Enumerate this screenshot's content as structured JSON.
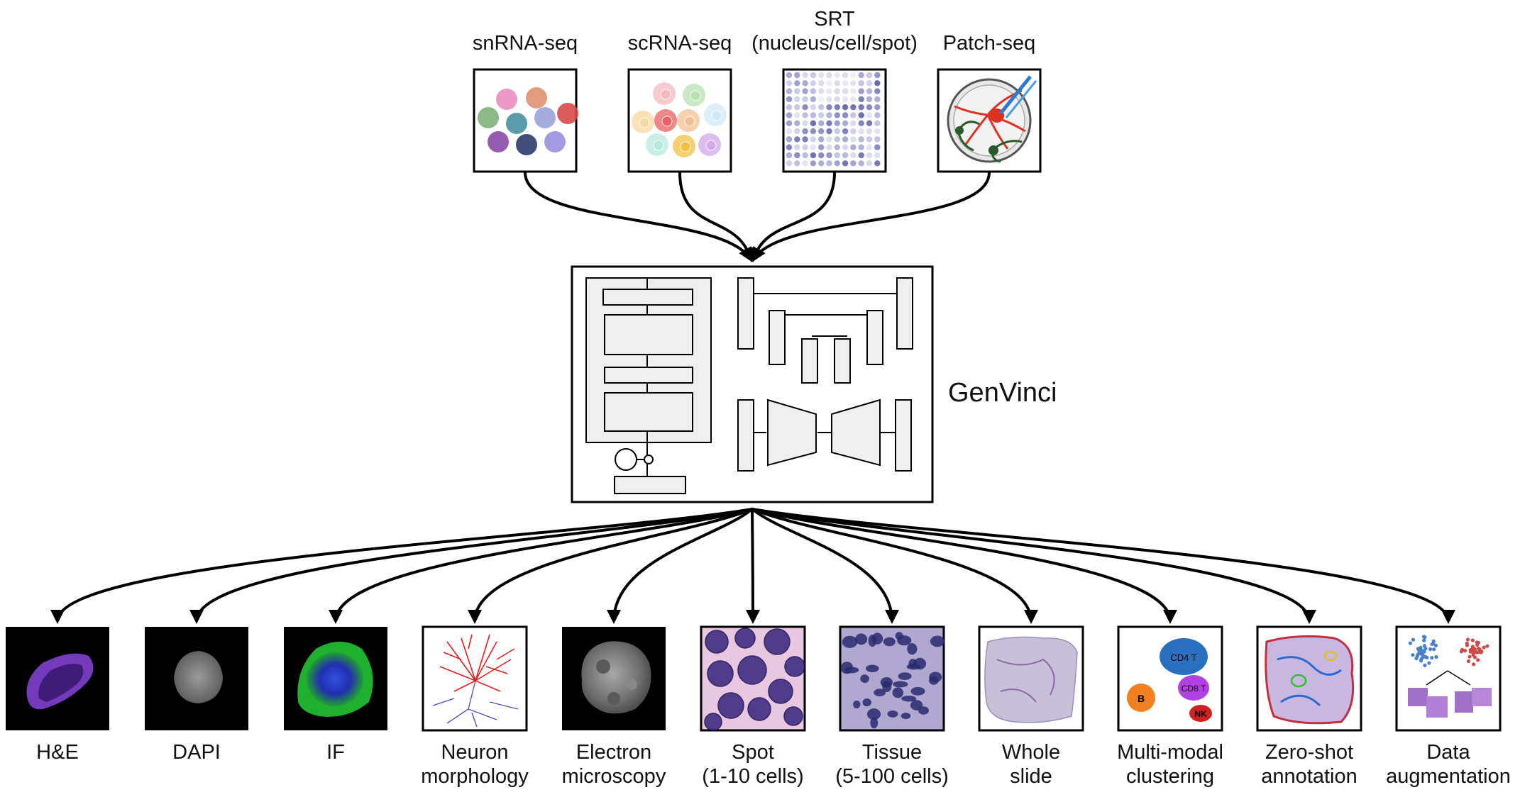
{
  "inputs": [
    {
      "id": "snrna",
      "title": [
        "snRNA-seq"
      ]
    },
    {
      "id": "scrna",
      "title": [
        "scRNA-seq"
      ]
    },
    {
      "id": "srt",
      "title": [
        "SRT",
        "(nucleus/cell/spot)"
      ]
    },
    {
      "id": "patch",
      "title": [
        "Patch-seq"
      ]
    }
  ],
  "model": {
    "name": "GenVinci"
  },
  "outputs": [
    {
      "id": "he",
      "title": [
        "H&E"
      ]
    },
    {
      "id": "dapi",
      "title": [
        "DAPI"
      ]
    },
    {
      "id": "if",
      "title": [
        "IF"
      ]
    },
    {
      "id": "neuron",
      "title": [
        "Neuron",
        "morphology"
      ]
    },
    {
      "id": "em",
      "title": [
        "Electron",
        "microscopy"
      ]
    },
    {
      "id": "spot",
      "title": [
        "Spot",
        "(1-10 cells)"
      ]
    },
    {
      "id": "tissue",
      "title": [
        "Tissue",
        "(5-100 cells)"
      ]
    },
    {
      "id": "wsi",
      "title": [
        "Whole",
        "slide"
      ]
    },
    {
      "id": "cluster",
      "title": [
        "Multi-modal",
        "clustering"
      ]
    },
    {
      "id": "zeroshot",
      "title": [
        "Zero-shot",
        "annotation"
      ]
    },
    {
      "id": "augment",
      "title": [
        "Data",
        "augmentation"
      ]
    }
  ],
  "cluster_labels": {
    "cd4": "CD4 T",
    "cd8": "CD8 T",
    "b": "B",
    "nk": "NK"
  },
  "colors": {
    "stroke": "#000000",
    "module_fill": "#efefef",
    "snrna_dots": [
      "#e88fbf",
      "#e09070",
      "#7fb27a",
      "#4a90a0",
      "#9aa3d8",
      "#d84a4a",
      "#8a4aa8",
      "#2e3a6a",
      "#9a8fe0"
    ],
    "scrna_dots": [
      "#f4b8c0",
      "#b8e0b0",
      "#f8d8a0",
      "#e86060",
      "#f0c090",
      "#d0e8f8",
      "#b8e8e0",
      "#f0c040",
      "#d0a8e8"
    ],
    "srt_dot": "#5a5aa8",
    "neuron_dendrite": "#e02020",
    "neuron_axon": "#5050c0",
    "if_green": "#2ecc40",
    "if_blue": "#2030c0",
    "he_purple": "#8040d0",
    "cd4": "#2a70c0",
    "cd8": "#b040e0",
    "b": "#f08020",
    "nk": "#d02020",
    "augment_blue": "#4a80c8",
    "augment_red": "#d04848"
  }
}
